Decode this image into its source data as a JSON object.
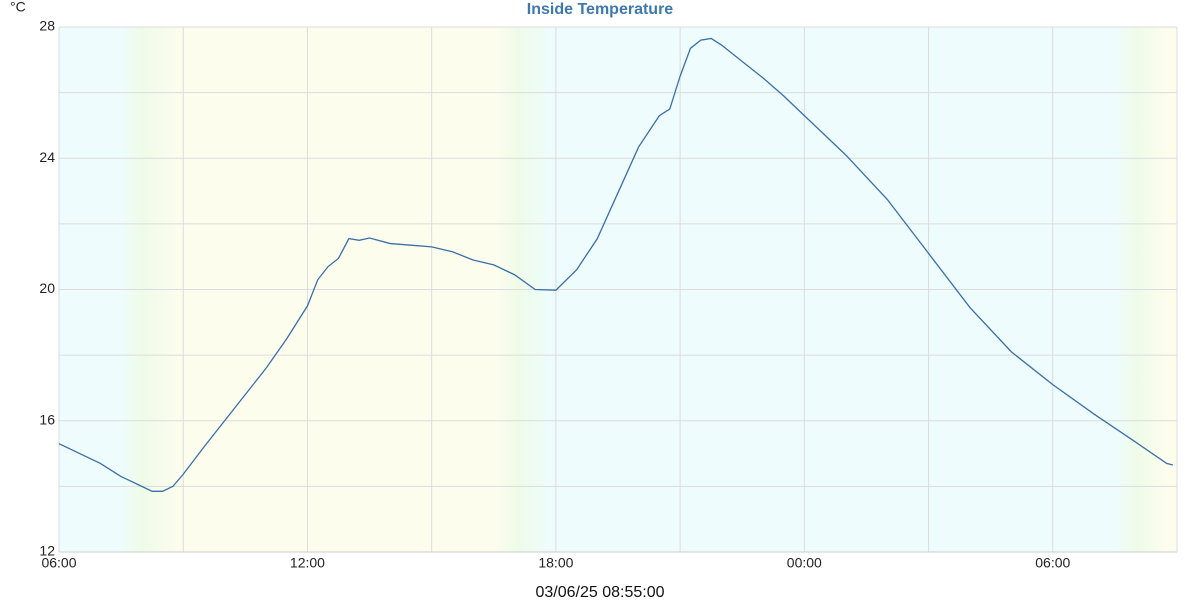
{
  "chart_data": {
    "type": "line",
    "title": "Inside Temperature",
    "y_label": "°C",
    "footer": "03/06/25 08:55:00",
    "x": [
      0,
      1,
      1.5,
      2,
      2.25,
      2.5,
      2.75,
      3,
      3.5,
      4,
      4.5,
      5,
      5.5,
      6,
      6.25,
      6.5,
      6.75,
      7,
      7.25,
      7.5,
      8,
      8.5,
      9,
      9.5,
      10,
      10.5,
      11,
      11.5,
      12,
      12.5,
      13,
      13.5,
      14,
      14.5,
      14.75,
      15,
      15.25,
      15.5,
      15.75,
      16,
      16.5,
      17,
      17.5,
      18,
      19,
      20,
      21,
      22,
      23,
      24,
      25,
      26,
      26.75,
      26.9
    ],
    "series": [
      {
        "name": "Inside Temperature",
        "color": "#3a6fa8",
        "values": [
          15.3,
          14.7,
          14.3,
          14.0,
          13.85,
          13.85,
          14.0,
          14.37,
          15.2,
          16.0,
          16.8,
          17.6,
          18.5,
          19.5,
          20.3,
          20.7,
          20.95,
          21.55,
          21.5,
          21.57,
          21.4,
          21.35,
          21.3,
          21.15,
          20.9,
          20.75,
          20.45,
          20.0,
          19.98,
          20.6,
          21.55,
          22.95,
          24.35,
          25.3,
          25.5,
          26.5,
          27.35,
          27.6,
          27.65,
          27.45,
          26.95,
          26.45,
          25.9,
          25.3,
          24.1,
          22.75,
          21.1,
          19.45,
          18.1,
          17.1,
          16.2,
          15.35,
          14.7,
          14.65
        ]
      }
    ],
    "xlim": [
      0,
      27
    ],
    "xticks": [
      {
        "value": 0,
        "label": "06:00"
      },
      {
        "value": 6,
        "label": "12:00"
      },
      {
        "value": 12,
        "label": "18:00"
      },
      {
        "value": 18,
        "label": "00:00"
      },
      {
        "value": 24,
        "label": "06:00"
      }
    ],
    "xgrid_minor": [
      3,
      9,
      15,
      21
    ],
    "ylim": [
      12,
      28
    ],
    "yticks": [
      12,
      16,
      20,
      24,
      28
    ],
    "ygrid_minor": [
      14,
      18,
      22,
      26
    ],
    "grid": true
  }
}
